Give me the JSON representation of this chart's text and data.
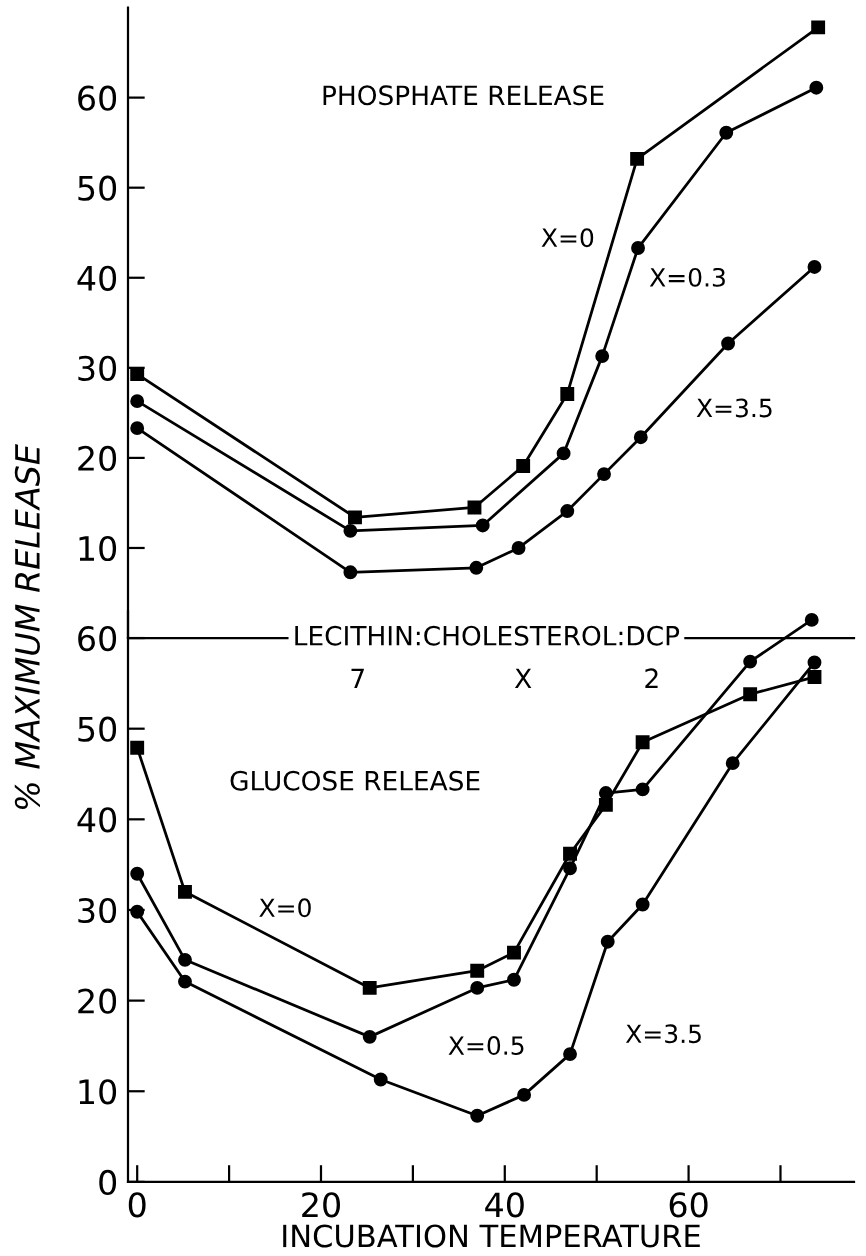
{
  "chart_data": [
    {
      "type": "line",
      "title": "PHOSPHATE RELEASE",
      "tick_labels": "y",
      "xlim": [
        -1,
        78
      ],
      "ylim": [
        0,
        70
      ],
      "yticks": [
        10,
        20,
        30,
        40,
        50,
        60
      ],
      "grid": false,
      "legend": false,
      "series": [
        {
          "name": "X=0",
          "color": "#000000",
          "marker": "square",
          "x": [
            0,
            23.7,
            36.7,
            42.0,
            46.8,
            54.4,
            74.1
          ],
          "values": [
            29.3,
            13.4,
            14.5,
            19.1,
            27.1,
            53.2,
            67.8
          ]
        },
        {
          "name": "X=0.3",
          "color": "#000000",
          "marker": "circle",
          "x": [
            0,
            23.2,
            37.6,
            46.4,
            50.6,
            54.5,
            64.1,
            73.9
          ],
          "values": [
            26.3,
            11.9,
            12.5,
            20.5,
            31.3,
            43.3,
            56.1,
            61.1
          ]
        },
        {
          "name": "X=3.5",
          "color": "#000000",
          "marker": "circle",
          "x": [
            0,
            23.2,
            36.9,
            41.5,
            46.8,
            50.8,
            54.8,
            64.3,
            73.7
          ],
          "values": [
            23.3,
            7.3,
            7.8,
            10.0,
            14.1,
            18.2,
            22.3,
            32.7,
            41.2
          ]
        }
      ]
    },
    {
      "type": "line",
      "title": "GLUCOSE RELEASE",
      "xlabel": "INCUBATION TEMPERATURE",
      "ylabel": "% MAXIMUM RELEASE",
      "xlim": [
        -1,
        78
      ],
      "ylim": [
        0,
        63
      ],
      "xticks": [
        0,
        {
          "value": 10,
          "label": null
        },
        20,
        {
          "value": 30,
          "label": null
        },
        40,
        {
          "value": 50,
          "label": null
        },
        60,
        {
          "value": 70,
          "label": null
        }
      ],
      "yticks": [
        0,
        10,
        20,
        30,
        40,
        50,
        60
      ],
      "grid": false,
      "legend": false,
      "annotations": [
        "LECITHIN:CHOLESTEROL:DCP",
        "7",
        "X",
        "2"
      ],
      "series": [
        {
          "name": "X=0",
          "color": "#000000",
          "marker": "square",
          "x": [
            0,
            5.2,
            25.3,
            37,
            41,
            47.1,
            51,
            55,
            66.7,
            73.7
          ],
          "values": [
            47.9,
            32,
            21.4,
            23.3,
            25.3,
            36.2,
            41.6,
            48.5,
            53.8,
            55.7
          ]
        },
        {
          "name": "X=0.5",
          "color": "#000000",
          "marker": "circle",
          "x": [
            0,
            5.2,
            25.3,
            37,
            41,
            47.1,
            51,
            55,
            66.7,
            73.4
          ],
          "values": [
            34.0,
            24.5,
            16.0,
            21.4,
            22.3,
            34.6,
            42.9,
            43.3,
            57.4,
            62.0
          ]
        },
        {
          "name": "X=3.5",
          "color": "#000000",
          "marker": "circle",
          "x": [
            0,
            5.2,
            26.5,
            37,
            42.1,
            47.1,
            51.2,
            55,
            64.8,
            73.7
          ],
          "values": [
            29.8,
            22.1,
            11.3,
            7.3,
            9.6,
            14.1,
            26.5,
            30.6,
            46.2,
            57.3
          ]
        }
      ]
    }
  ]
}
